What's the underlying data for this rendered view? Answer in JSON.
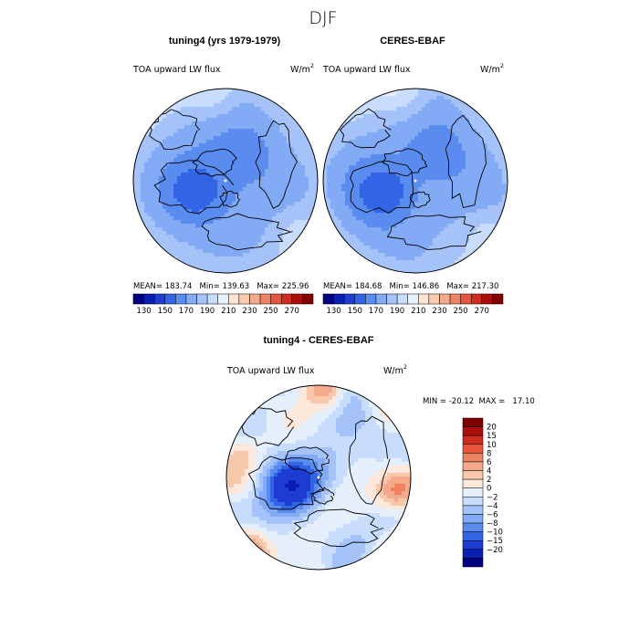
{
  "title": "DJF",
  "palettes": {
    "abs": [
      "#000080",
      "#0a1eb4",
      "#1e3cd2",
      "#3264e6",
      "#5a8cf0",
      "#82aaf5",
      "#a5c3f8",
      "#c8dcfb",
      "#e6f0fd",
      "#fbe6d7",
      "#f8cbb3",
      "#f5aa8c",
      "#f08264",
      "#e6553c",
      "#cd2d1e",
      "#aa0f0a",
      "#800000"
    ],
    "diff": [
      "#000080",
      "#0a1eb4",
      "#1e3cd2",
      "#3264e6",
      "#5a8cf0",
      "#82aaf5",
      "#a5c3f8",
      "#c8dcfb",
      "#e6f0fd",
      "#fde8dc",
      "#f8c8ac",
      "#f5aa8c",
      "#f08264",
      "#e6553c",
      "#cd2d1e",
      "#aa0f0a",
      "#800000"
    ]
  },
  "chart_data": [
    {
      "type": "heatmap",
      "id": "model",
      "title": "tuning4 (yrs 1979-1979)",
      "variable": "TOA upward LW flux",
      "units_base": "W/m",
      "units_exp": "2",
      "stats": "MEAN= 183.74   Min= 139.63   Max= 225.96",
      "mean": 183.74,
      "min": 139.63,
      "max": 225.96,
      "colorbar_ticks": [
        "130",
        "150",
        "170",
        "190",
        "210",
        "230",
        "250",
        "270"
      ],
      "colorbar_levels": [
        120,
        130,
        140,
        150,
        160,
        170,
        180,
        190,
        200,
        210,
        220,
        230,
        240,
        250,
        260,
        270,
        280
      ],
      "projection": "north polar stereographic"
    },
    {
      "type": "heatmap",
      "id": "obs",
      "title": "CERES-EBAF",
      "variable": "TOA upward LW flux",
      "units_base": "W/m",
      "units_exp": "2",
      "stats": "MEAN= 184.68   Min= 146.86   Max= 217.30",
      "mean": 184.68,
      "min": 146.86,
      "max": 217.3,
      "colorbar_ticks": [
        "130",
        "150",
        "170",
        "190",
        "210",
        "230",
        "250",
        "270"
      ],
      "colorbar_levels": [
        120,
        130,
        140,
        150,
        160,
        170,
        180,
        190,
        200,
        210,
        220,
        230,
        240,
        250,
        260,
        270,
        280
      ],
      "projection": "north polar stereographic"
    },
    {
      "type": "heatmap",
      "id": "diff",
      "title": "tuning4 - CERES-EBAF",
      "variable": "TOA upward LW flux",
      "units_base": "W/m",
      "units_exp": "2",
      "stats": "MIN = -20.12  MAX =   17.10",
      "min": -20.12,
      "max": 17.1,
      "colorbar_labels": [
        "20",
        "15",
        "10",
        "8",
        "6",
        "4",
        "2",
        "0",
        "-2",
        "-4",
        "-6",
        "-8",
        "-10",
        "-15",
        "-20"
      ],
      "colorbar_levels": [
        -25,
        -20,
        -15,
        -10,
        -8,
        -6,
        -4,
        -2,
        0,
        2,
        4,
        6,
        8,
        10,
        15,
        20,
        25
      ],
      "projection": "north polar stereographic"
    }
  ]
}
